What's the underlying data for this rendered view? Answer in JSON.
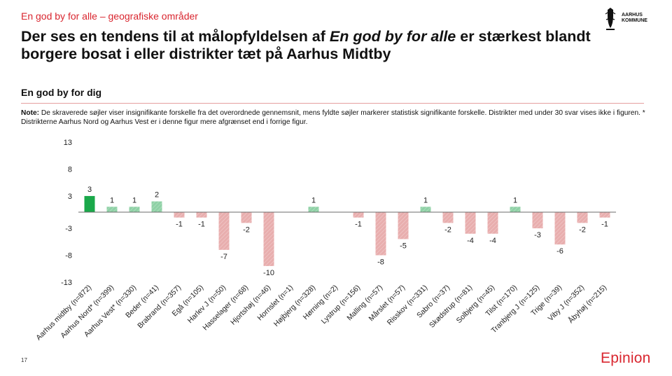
{
  "header": {
    "kicker": "En god by for alle – geografiske områder",
    "title_part1": "Der ses en tendens til at målopfyldelsen af ",
    "title_em": "En god by for alle",
    "title_part2": " er stærkest blandt borgere bosat i eller distrikter tæt på Aarhus Midtby"
  },
  "logo": {
    "line1": "AARHUS",
    "line2": "KOMMUNE",
    "icon": "aarhus-seal-icon"
  },
  "section_title": "En god by for dig",
  "note": {
    "label": "Note:",
    "text": " De skraverede søjler viser insignifikante forskelle fra det overordnede gennemsnit, mens fyldte søjler markerer statistisk signifikante forskelle. Distrikter med under 30 svar vises ikke i figuren. * Distrikterne Aarhus Nord og Aarhus Vest er i denne figur mere afgrænset end i forrige figur."
  },
  "footer": {
    "page_number": "17",
    "brand": "Epinion"
  },
  "colors": {
    "sig_positive": "#1aa84a",
    "insig_positive": "#8fd1a6",
    "insig_negative": "#e8aeae",
    "axis": "#6b6b6b",
    "accent_red": "#d9262f"
  },
  "chart_data": {
    "type": "bar",
    "title": "",
    "xlabel": "",
    "ylabel": "",
    "ylim": [
      -13,
      13
    ],
    "yticks": [
      13,
      8,
      3,
      -3,
      -8,
      -13
    ],
    "categories": [
      "Aarhus midtby (n=872)",
      "Aarhus Nord* (n=399)",
      "Aarhus Vest* (n=330)",
      "Beder (n=41)",
      "Brabrand (n=357)",
      "Egå (n=105)",
      "Harlev J (n=50)",
      "Hasselager (n=68)",
      "Hjortshøj (n=46)",
      "Hornslet (n=1)",
      "Højbjerg (n=328)",
      "Hørning (n=2)",
      "Lystrup (n=156)",
      "Malling (n=57)",
      "Mårslet (n=57)",
      "Risskov (n=331)",
      "Sabro (n=37)",
      "Skødstrup (n=81)",
      "Solbjerg (n=45)",
      "Tilst (n=170)",
      "Tranbjerg J (n=125)",
      "Trige (n=39)",
      "Viby J (n=352)",
      "Åbyhøj (n=215)"
    ],
    "values": [
      3,
      1,
      1,
      2,
      -1,
      -1,
      -7,
      -2,
      -10,
      null,
      1,
      null,
      -1,
      -8,
      -5,
      1,
      -2,
      -4,
      -4,
      1,
      -3,
      -6,
      -2,
      -1
    ],
    "labels": [
      "3",
      "1",
      "1",
      "2",
      "-1",
      "-1",
      "-7",
      "-2",
      "-10",
      "",
      "1",
      "",
      "-1",
      "-8",
      "-5",
      "1",
      "-2",
      "-4",
      "-4",
      "1",
      "-3",
      "-6",
      "-2",
      "-1"
    ],
    "significant": [
      true,
      false,
      false,
      false,
      false,
      false,
      false,
      false,
      false,
      false,
      false,
      false,
      false,
      false,
      false,
      false,
      false,
      false,
      false,
      false,
      false,
      false,
      false,
      false
    ],
    "grid": false,
    "legend": "none"
  }
}
